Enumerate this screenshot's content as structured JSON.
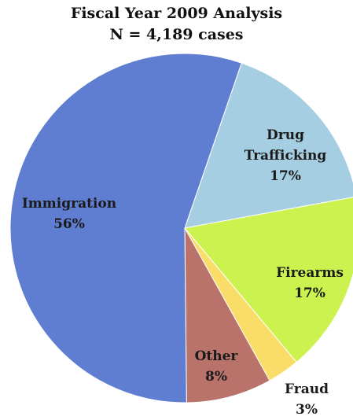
{
  "chart_data": {
    "type": "pie",
    "title": "Fiscal Year 2009 Analysis",
    "subtitle": "N = 4,189 cases",
    "slices": [
      {
        "label": "Drug Trafficking",
        "label_lines": [
          "Drug",
          "Trafficking"
        ],
        "value": 17,
        "value_label": "17%",
        "color": "#a6cee3"
      },
      {
        "label": "Firearms",
        "label_lines": [
          "Firearms"
        ],
        "value": 17,
        "value_label": "17%",
        "color": "#ccf250"
      },
      {
        "label": "Fraud",
        "label_lines": [
          "Fraud"
        ],
        "value": 3,
        "value_label": "3%",
        "color": "#f9dd68"
      },
      {
        "label": "Other",
        "label_lines": [
          "Other"
        ],
        "value": 8,
        "value_label": "8%",
        "color": "#b9736b"
      },
      {
        "label": "Immigration",
        "label_lines": [
          "Immigration"
        ],
        "value": 56,
        "value_label": "56%",
        "color": "#5f7ed1"
      }
    ]
  }
}
